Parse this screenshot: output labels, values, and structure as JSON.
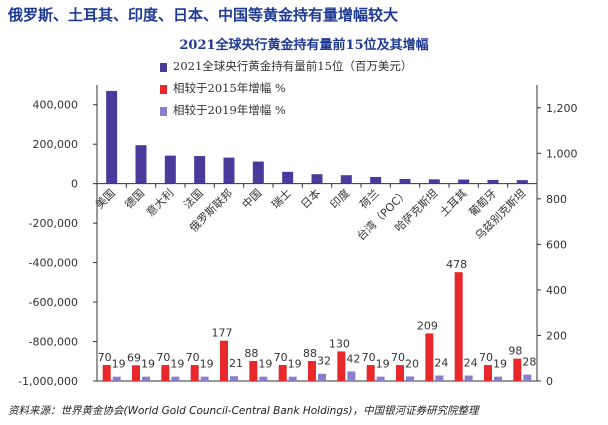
{
  "main_title": "俄罗斯、土耳其、印度、日本、中国等黄金持有量增幅较大",
  "source_note": "资料来源：世界黄金协会(World Gold Council-Central Bank Holdings)，中国银河证券研究院整理",
  "colors": {
    "holdings": "#4b3a9b",
    "vs2015": "#e8282a",
    "vs2019": "#8b7fc9",
    "axis": "#333333",
    "title": "#1f3a93"
  },
  "chart_data": {
    "type": "bar",
    "title": "2021全球央行黄金持有量前15位及其增幅",
    "categories": [
      "美国",
      "德国",
      "意大利",
      "法国",
      "俄罗斯联邦",
      "中国",
      "瑞士",
      "日本",
      "印度",
      "荷兰",
      "台湾（POC）",
      "哈萨克斯坦",
      "土耳其",
      "葡萄牙",
      "乌兹别克斯坦"
    ],
    "series": [
      {
        "name": "2021全球央行黄金持有量前15位（百万美元）",
        "axis": "left",
        "values": [
          470000,
          195000,
          142000,
          140000,
          132000,
          112000,
          60000,
          48000,
          43000,
          34000,
          24000,
          22000,
          21000,
          19000,
          18000
        ]
      },
      {
        "name": "相较于2015年增幅 %",
        "axis": "right",
        "values": [
          70,
          69,
          70,
          70,
          177,
          88,
          70,
          88,
          130,
          70,
          70,
          209,
          478,
          70,
          98
        ]
      },
      {
        "name": "相较于2019年增幅 %",
        "axis": "right",
        "values": [
          19,
          19,
          19,
          19,
          21,
          19,
          19,
          32,
          42,
          19,
          20,
          24,
          24,
          19,
          28
        ]
      }
    ],
    "left_axis": {
      "min": -1000000,
      "max": 500000,
      "tick_values": [
        400000,
        200000,
        0,
        -200000,
        -400000,
        -600000,
        -800000,
        -1000000
      ],
      "tick_labels": [
        "400,000",
        "200,000",
        "0",
        "-200,000",
        "-400,000",
        "-600,000",
        "-800,000",
        "-1,000,000"
      ]
    },
    "right_axis": {
      "min": 0,
      "max": 1300,
      "tick_values": [
        1200,
        1000,
        800,
        600,
        400,
        200,
        0
      ],
      "tick_labels": [
        "1,200",
        "1,000",
        "800",
        "600",
        "400",
        "200",
        "0"
      ]
    },
    "grid": false,
    "legend_position": "top-center"
  }
}
